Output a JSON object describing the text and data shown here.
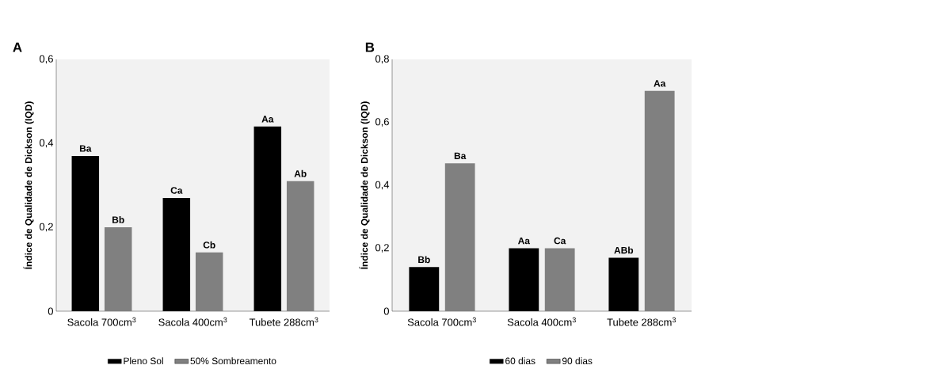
{
  "chart_data": [
    {
      "type": "bar",
      "title": "A",
      "ylabel": "Índice de Qualidade de Dickson (IQD)",
      "categories": [
        "Sacola 700cm$^{3}$",
        "Sacola 400cm$^{3}$",
        "Tubete 288cm$^{3}$"
      ],
      "series": [
        {
          "name": "Pleno Sol",
          "color": "#000000",
          "values": [
            0.37,
            0.27,
            0.44
          ],
          "value_labels": [
            "Ba",
            "Ca",
            "Aa"
          ]
        },
        {
          "name": "50% Sombreamento",
          "color": "#808080",
          "values": [
            0.2,
            0.14,
            0.31
          ],
          "value_labels": [
            "Bb",
            "Cb",
            "Ab"
          ]
        }
      ],
      "ylim": [
        0,
        0.6
      ],
      "yticks": [
        0,
        {
          "value": 0.2,
          "label": "0,2"
        },
        {
          "value": 0.4,
          "label": "0,4"
        },
        {
          "value": 0.6,
          "label": "0,6"
        }
      ],
      "legend": "bottom"
    },
    {
      "type": "bar",
      "title": "B",
      "ylabel": "Índice de Qualidade de Dickson (IQD)",
      "categories": [
        "Sacola 700cm$^{3}$",
        "Sacola 400cm$^{3}$",
        "Tubete 288cm$^{3}$"
      ],
      "series": [
        {
          "name": "60 dias",
          "color": "#000000",
          "values": [
            0.14,
            0.2,
            0.17
          ],
          "value_labels": [
            "Bb",
            "Aa",
            "ABb"
          ]
        },
        {
          "name": "90 dias",
          "color": "#808080",
          "values": [
            0.47,
            0.2,
            0.7
          ],
          "value_labels": [
            "Ba",
            "Ca",
            "Aa"
          ]
        }
      ],
      "ylim": [
        0,
        0.8
      ],
      "yticks": [
        0,
        {
          "value": 0.2,
          "label": "0,2"
        },
        {
          "value": 0.4,
          "label": "0,4"
        },
        {
          "value": 0.6,
          "label": "0,6"
        },
        {
          "value": 0.8,
          "label": "0,8"
        }
      ],
      "legend": "bottom"
    }
  ]
}
